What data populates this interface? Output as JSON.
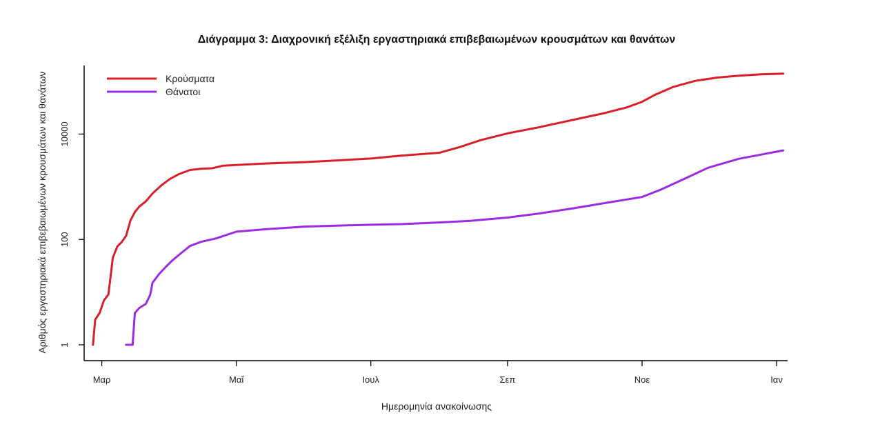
{
  "chart_data": {
    "type": "line",
    "title": "Διάγραμμα 3: Διαχρονική εξέλιξη εργαστηριακά επιβεβαιωμένων κρουσμάτων και θανάτων",
    "xlabel": "Ημερομηνία ανακοίνωσης",
    "ylabel": "Αριθμός εργαστηριακά επιβεβαιωμένων κρουσμάτων και θανάτων",
    "yscale": "log",
    "ylim": [
      0.5,
      200000
    ],
    "xlim": [
      "2020-02-22",
      "2021-01-06"
    ],
    "x_ticks": [
      {
        "date": "2020-03-01",
        "label": "Μαρ"
      },
      {
        "date": "2020-05-01",
        "label": "Μαΐ"
      },
      {
        "date": "2020-07-01",
        "label": "Ιουλ"
      },
      {
        "date": "2020-09-01",
        "label": "Σεπ"
      },
      {
        "date": "2020-11-01",
        "label": "Νοε"
      },
      {
        "date": "2021-01-01",
        "label": "Ιαν"
      }
    ],
    "y_ticks": [
      {
        "value": 1,
        "label": "1"
      },
      {
        "value": 100,
        "label": "100"
      },
      {
        "value": 10000,
        "label": "10000"
      }
    ],
    "grid": false,
    "legend_position": "top-left",
    "series": [
      {
        "name": "Κρούσματα",
        "color": "#d81e27",
        "points": [
          [
            "2020-02-26",
            1
          ],
          [
            "2020-02-27",
            3
          ],
          [
            "2020-02-29",
            4
          ],
          [
            "2020-03-02",
            7
          ],
          [
            "2020-03-04",
            9
          ],
          [
            "2020-03-06",
            45
          ],
          [
            "2020-03-08",
            73
          ],
          [
            "2020-03-10",
            89
          ],
          [
            "2020-03-12",
            117
          ],
          [
            "2020-03-14",
            228
          ],
          [
            "2020-03-16",
            331
          ],
          [
            "2020-03-18",
            418
          ],
          [
            "2020-03-21",
            530
          ],
          [
            "2020-03-24",
            743
          ],
          [
            "2020-03-28",
            1061
          ],
          [
            "2020-04-01",
            1415
          ],
          [
            "2020-04-05",
            1735
          ],
          [
            "2020-04-10",
            2081
          ],
          [
            "2020-04-15",
            2192
          ],
          [
            "2020-04-20",
            2245
          ],
          [
            "2020-04-25",
            2506
          ],
          [
            "2020-05-01",
            2591
          ],
          [
            "2020-05-15",
            2770
          ],
          [
            "2020-06-01",
            2937
          ],
          [
            "2020-06-15",
            3148
          ],
          [
            "2020-07-01",
            3432
          ],
          [
            "2020-07-15",
            3910
          ],
          [
            "2020-08-01",
            4400
          ],
          [
            "2020-08-10",
            5600
          ],
          [
            "2020-08-20",
            7700
          ],
          [
            "2020-09-01",
            10300
          ],
          [
            "2020-09-15",
            13400
          ],
          [
            "2020-10-01",
            18700
          ],
          [
            "2020-10-15",
            25000
          ],
          [
            "2020-10-25",
            32000
          ],
          [
            "2020-11-01",
            41000
          ],
          [
            "2020-11-07",
            56000
          ],
          [
            "2020-11-15",
            78000
          ],
          [
            "2020-11-25",
            102000
          ],
          [
            "2020-12-05",
            118000
          ],
          [
            "2020-12-15",
            128000
          ],
          [
            "2020-12-25",
            136000
          ],
          [
            "2021-01-04",
            140000
          ]
        ]
      },
      {
        "name": "Θάνατοι",
        "color": "#9a2be2",
        "points": [
          [
            "2020-03-12",
            1
          ],
          [
            "2020-03-15",
            1
          ],
          [
            "2020-03-16",
            4
          ],
          [
            "2020-03-18",
            5
          ],
          [
            "2020-03-21",
            6
          ],
          [
            "2020-03-23",
            9
          ],
          [
            "2020-03-24",
            15
          ],
          [
            "2020-03-27",
            22
          ],
          [
            "2020-03-30",
            30
          ],
          [
            "2020-04-02",
            40
          ],
          [
            "2020-04-06",
            55
          ],
          [
            "2020-04-10",
            75
          ],
          [
            "2020-04-15",
            90
          ],
          [
            "2020-04-22",
            105
          ],
          [
            "2020-05-01",
            140
          ],
          [
            "2020-05-15",
            157
          ],
          [
            "2020-06-01",
            175
          ],
          [
            "2020-06-15",
            182
          ],
          [
            "2020-07-01",
            190
          ],
          [
            "2020-07-15",
            195
          ],
          [
            "2020-08-01",
            210
          ],
          [
            "2020-08-15",
            225
          ],
          [
            "2020-09-01",
            260
          ],
          [
            "2020-09-15",
            310
          ],
          [
            "2020-10-01",
            390
          ],
          [
            "2020-10-15",
            490
          ],
          [
            "2020-11-01",
            640
          ],
          [
            "2020-11-10",
            900
          ],
          [
            "2020-11-20",
            1400
          ],
          [
            "2020-12-01",
            2300
          ],
          [
            "2020-12-15",
            3400
          ],
          [
            "2021-01-04",
            4900
          ]
        ]
      }
    ]
  }
}
